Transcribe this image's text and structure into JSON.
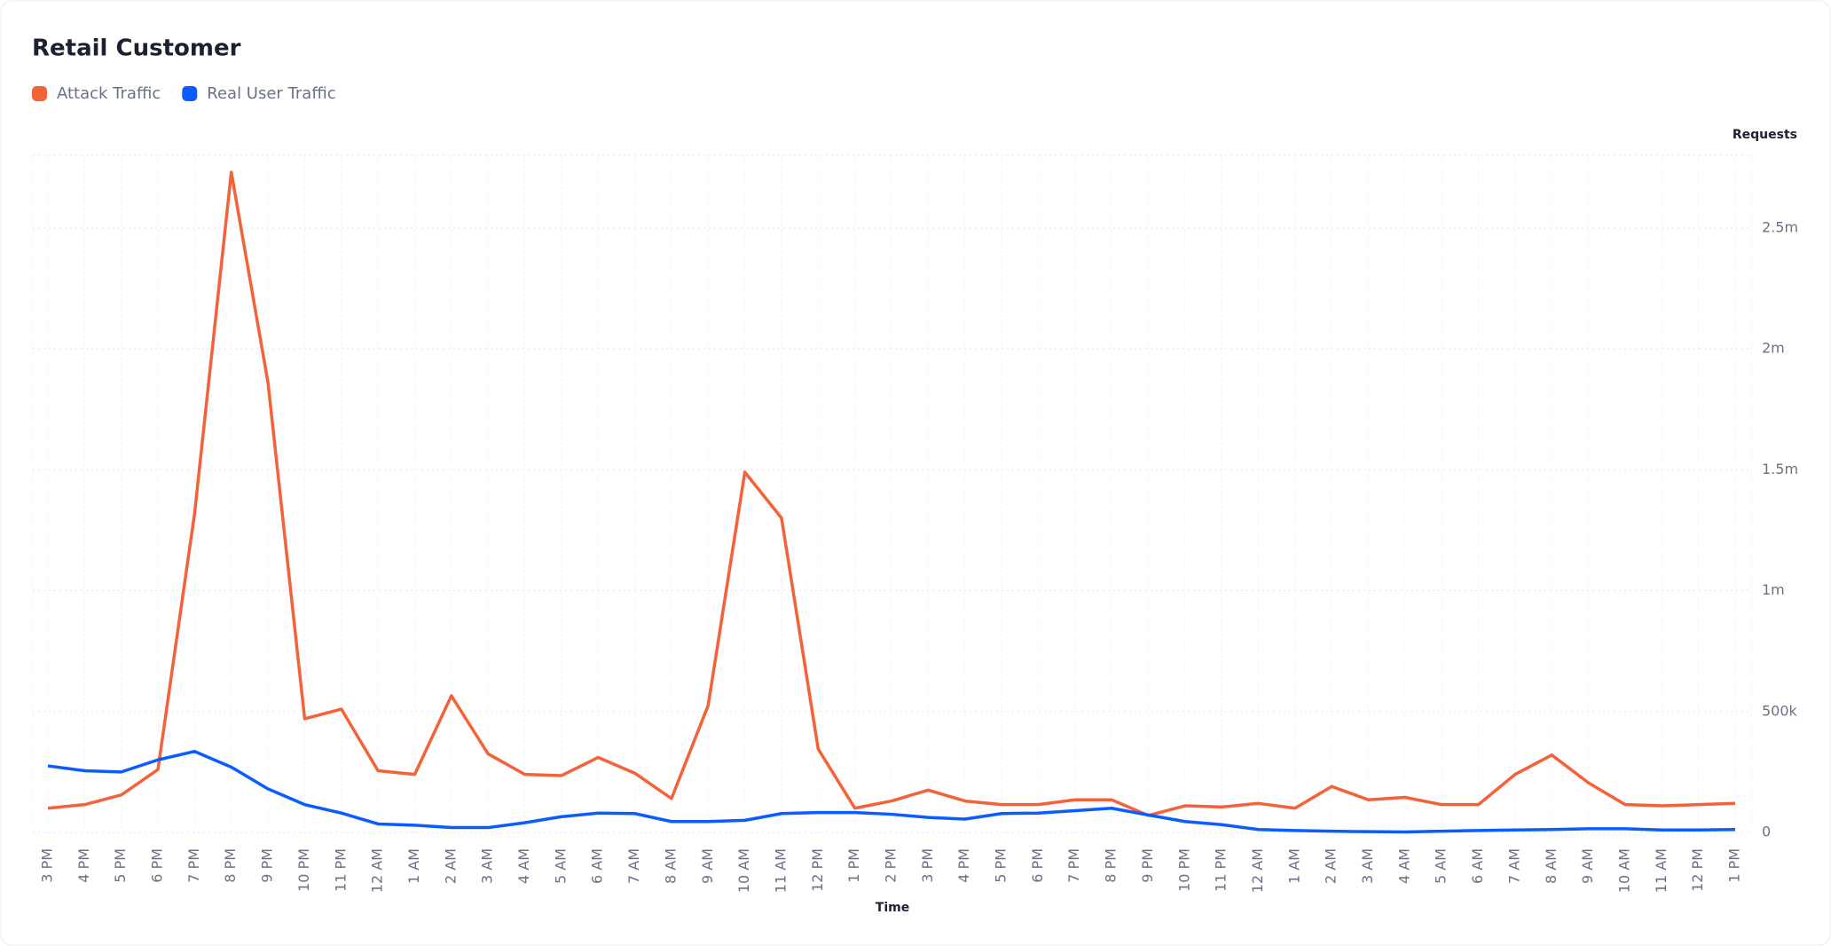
{
  "chart_data": {
    "type": "line",
    "title": "Retail Customer",
    "x_label": "Time",
    "y_label": "Requests",
    "categories": [
      "3 PM",
      "4 PM",
      "5 PM",
      "6 PM",
      "7 PM",
      "8 PM",
      "9 PM",
      "10 PM",
      "11 PM",
      "12 AM",
      "1 AM",
      "2 AM",
      "3 AM",
      "4 AM",
      "5 AM",
      "6 AM",
      "7 AM",
      "8 AM",
      "9 AM",
      "10 AM",
      "11 AM",
      "12 PM",
      "1 PM",
      "2 PM",
      "3 PM",
      "4 PM",
      "5 PM",
      "6 PM",
      "7 PM",
      "8 PM",
      "9 PM",
      "10 PM",
      "11 PM",
      "12 AM",
      "1 AM",
      "2 AM",
      "3 AM",
      "4 AM",
      "5 AM",
      "6 AM",
      "7 AM",
      "8 AM",
      "9 AM",
      "10 AM",
      "11 AM",
      "12 PM",
      "1 PM"
    ],
    "series": [
      {
        "name": "Attack Traffic",
        "color": "#f4623a",
        "values": [
          100000,
          115000,
          155000,
          260000,
          1320000,
          2730000,
          1860000,
          470000,
          510000,
          255000,
          240000,
          565000,
          325000,
          240000,
          235000,
          310000,
          245000,
          140000,
          525000,
          1490000,
          1300000,
          345000,
          100000,
          130000,
          175000,
          130000,
          115000,
          115000,
          135000,
          135000,
          70000,
          110000,
          105000,
          120000,
          100000,
          190000,
          135000,
          145000,
          115000,
          115000,
          240000,
          320000,
          205000,
          115000,
          110000,
          115000,
          120000
        ]
      },
      {
        "name": "Real User Traffic",
        "color": "#0a5cff",
        "values": [
          275000,
          255000,
          250000,
          300000,
          335000,
          270000,
          180000,
          115000,
          80000,
          35000,
          30000,
          20000,
          20000,
          40000,
          65000,
          80000,
          78000,
          45000,
          45000,
          50000,
          78000,
          82000,
          82000,
          75000,
          62000,
          55000,
          78000,
          80000,
          90000,
          100000,
          72000,
          45000,
          32000,
          12000,
          8000,
          5000,
          3000,
          2000,
          5000,
          8000,
          10000,
          12000,
          15000,
          15000,
          10000,
          10000,
          12000
        ]
      }
    ],
    "ylim": [
      0,
      2800000
    ],
    "yticks": [
      0,
      {
        "value": 500000,
        "label": "500k"
      },
      {
        "value": 1000000,
        "label": "1m"
      },
      {
        "value": 1500000,
        "label": "1.5m"
      },
      {
        "value": 2000000,
        "label": "2m"
      },
      {
        "value": 2500000,
        "label": "2.5m"
      }
    ],
    "grid": true,
    "legend": "top-left"
  }
}
